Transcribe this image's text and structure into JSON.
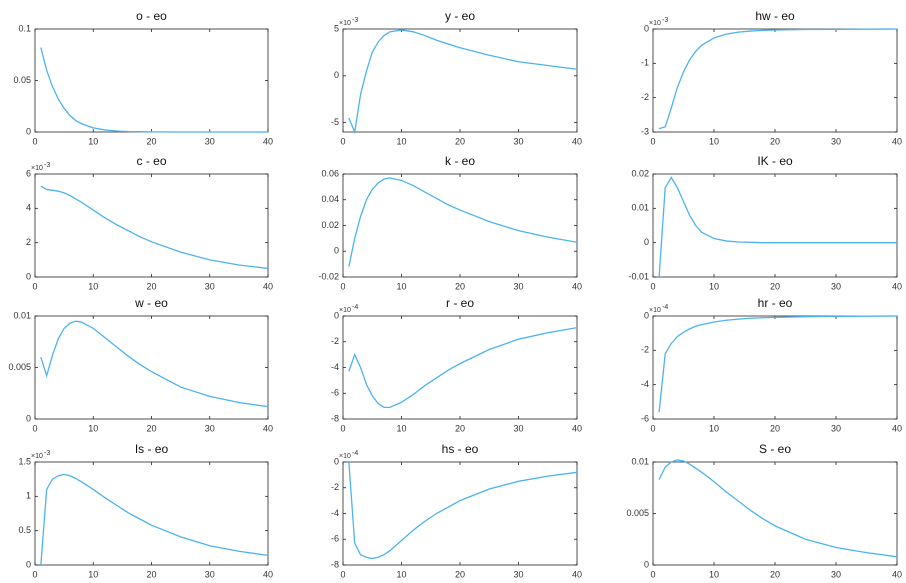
{
  "chart_data": [
    {
      "type": "line",
      "title": "o - eo",
      "color": "#4db3ef",
      "x": [
        1,
        2,
        3,
        4,
        5,
        6,
        7,
        8,
        10,
        12,
        14,
        16,
        18,
        20,
        25,
        30,
        35,
        40
      ],
      "values": [
        0.082,
        0.06,
        0.044,
        0.032,
        0.023,
        0.016,
        0.011,
        0.008,
        0.004,
        0.002,
        0.001,
        0.0005,
        0.0003,
        0.0001,
        0,
        0,
        0,
        0
      ],
      "xlim": [
        0,
        40
      ],
      "xticks": [
        0,
        10,
        20,
        30,
        40
      ],
      "ylim": [
        0,
        0.1
      ],
      "yticks": [
        0,
        0.05,
        0.1
      ]
    },
    {
      "type": "line",
      "title": "y - eo",
      "color": "#4db3ef",
      "x": [
        1,
        2,
        3,
        4,
        5,
        6,
        7,
        8,
        10,
        12,
        14,
        16,
        18,
        20,
        25,
        30,
        35,
        40
      ],
      "values": [
        -4.5,
        -6,
        -2,
        0.5,
        2.5,
        3.6,
        4.3,
        4.7,
        4.9,
        4.7,
        4.3,
        3.8,
        3.4,
        3.0,
        2.2,
        1.5,
        1.1,
        0.7
      ],
      "xlim": [
        0,
        40
      ],
      "xticks": [
        0,
        10,
        20,
        30,
        40
      ],
      "ylim": [
        -6,
        5
      ],
      "yticks": [
        -5,
        0,
        5
      ],
      "y_scale": {
        "base": "×10",
        "exponent": "-3"
      }
    },
    {
      "type": "line",
      "title": "hw - eo",
      "color": "#4db3ef",
      "x": [
        1,
        2,
        3,
        4,
        5,
        6,
        7,
        8,
        10,
        12,
        14,
        16,
        18,
        20,
        25,
        30,
        35,
        40
      ],
      "values": [
        -2.9,
        -2.85,
        -2.3,
        -1.7,
        -1.25,
        -0.9,
        -0.65,
        -0.47,
        -0.26,
        -0.15,
        -0.09,
        -0.06,
        -0.04,
        -0.03,
        -0.015,
        -0.01,
        -0.005,
        0
      ],
      "xlim": [
        0,
        40
      ],
      "xticks": [
        0,
        10,
        20,
        30,
        40
      ],
      "ylim": [
        -3,
        0
      ],
      "yticks": [
        -3,
        -2,
        -1,
        0
      ],
      "y_scale": {
        "base": "×10",
        "exponent": "-3"
      }
    },
    {
      "type": "line",
      "title": "c - eo",
      "color": "#4db3ef",
      "x": [
        1,
        2,
        3,
        4,
        5,
        6,
        7,
        8,
        10,
        12,
        14,
        16,
        18,
        20,
        25,
        30,
        35,
        40
      ],
      "values": [
        5.3,
        5.1,
        5.05,
        5.0,
        4.9,
        4.75,
        4.55,
        4.35,
        3.9,
        3.45,
        3.05,
        2.7,
        2.35,
        2.05,
        1.45,
        1.0,
        0.7,
        0.5
      ],
      "xlim": [
        0,
        40
      ],
      "xticks": [
        0,
        10,
        20,
        30,
        40
      ],
      "ylim": [
        0,
        6
      ],
      "yticks": [
        0,
        2,
        4,
        6
      ],
      "y_scale": {
        "base": "×10",
        "exponent": "-3"
      }
    },
    {
      "type": "line",
      "title": "k - eo",
      "color": "#4db3ef",
      "x": [
        1,
        2,
        3,
        4,
        5,
        6,
        7,
        8,
        10,
        12,
        14,
        16,
        18,
        20,
        25,
        30,
        35,
        40
      ],
      "values": [
        -0.012,
        0.01,
        0.027,
        0.04,
        0.048,
        0.053,
        0.056,
        0.057,
        0.055,
        0.051,
        0.046,
        0.041,
        0.036,
        0.032,
        0.023,
        0.016,
        0.011,
        0.007
      ],
      "xlim": [
        0,
        40
      ],
      "xticks": [
        0,
        10,
        20,
        30,
        40
      ],
      "ylim": [
        -0.02,
        0.06
      ],
      "yticks": [
        -0.02,
        0,
        0.02,
        0.04,
        0.06
      ]
    },
    {
      "type": "line",
      "title": "IK - eo",
      "color": "#4db3ef",
      "x": [
        1,
        2,
        3,
        4,
        5,
        6,
        7,
        8,
        10,
        12,
        14,
        16,
        18,
        20,
        25,
        30,
        35,
        40
      ],
      "values": [
        -0.01,
        0.016,
        0.019,
        0.016,
        0.012,
        0.008,
        0.005,
        0.003,
        0.0012,
        0.0005,
        0.0002,
        0.0001,
        0,
        0,
        0,
        0,
        0,
        0
      ],
      "xlim": [
        0,
        40
      ],
      "xticks": [
        0,
        10,
        20,
        30,
        40
      ],
      "ylim": [
        -0.01,
        0.02
      ],
      "yticks": [
        -0.01,
        0,
        0.01,
        0.02
      ]
    },
    {
      "type": "line",
      "title": "w - eo",
      "color": "#4db3ef",
      "x": [
        1,
        2,
        3,
        4,
        5,
        6,
        7,
        8,
        10,
        12,
        14,
        16,
        18,
        20,
        25,
        30,
        35,
        40
      ],
      "values": [
        0.006,
        0.0042,
        0.0062,
        0.0078,
        0.0088,
        0.0093,
        0.0095,
        0.0094,
        0.0088,
        0.0079,
        0.007,
        0.0061,
        0.0053,
        0.0046,
        0.0031,
        0.0022,
        0.0016,
        0.0012
      ],
      "xlim": [
        0,
        40
      ],
      "xticks": [
        0,
        10,
        20,
        30,
        40
      ],
      "ylim": [
        0,
        0.01
      ],
      "yticks": [
        0,
        0.005,
        0.01
      ]
    },
    {
      "type": "line",
      "title": "r - eo",
      "color": "#4db3ef",
      "x": [
        1,
        2,
        3,
        4,
        5,
        6,
        7,
        8,
        10,
        12,
        14,
        16,
        18,
        20,
        25,
        30,
        35,
        40
      ],
      "values": [
        -4.3,
        -3.0,
        -4.0,
        -5.3,
        -6.2,
        -6.8,
        -7.1,
        -7.1,
        -6.7,
        -6.1,
        -5.4,
        -4.8,
        -4.2,
        -3.7,
        -2.6,
        -1.8,
        -1.3,
        -0.9
      ],
      "xlim": [
        0,
        40
      ],
      "xticks": [
        0,
        10,
        20,
        30,
        40
      ],
      "ylim": [
        -8,
        0
      ],
      "yticks": [
        -8,
        -6,
        -4,
        -2,
        0
      ],
      "y_scale": {
        "base": "×10",
        "exponent": "-4"
      }
    },
    {
      "type": "line",
      "title": "hr - eo",
      "color": "#4db3ef",
      "x": [
        1,
        2,
        3,
        4,
        5,
        6,
        7,
        8,
        10,
        12,
        14,
        16,
        18,
        20,
        25,
        30,
        35,
        40
      ],
      "values": [
        -5.6,
        -2.2,
        -1.6,
        -1.2,
        -0.95,
        -0.75,
        -0.6,
        -0.5,
        -0.35,
        -0.25,
        -0.18,
        -0.13,
        -0.1,
        -0.08,
        -0.04,
        -0.02,
        -0.01,
        0
      ],
      "xlim": [
        0,
        40
      ],
      "xticks": [
        0,
        10,
        20,
        30,
        40
      ],
      "ylim": [
        -6,
        0
      ],
      "yticks": [
        -6,
        -4,
        -2,
        0
      ],
      "y_scale": {
        "base": "×10",
        "exponent": "-4"
      }
    },
    {
      "type": "line",
      "title": "Is - eo",
      "color": "#4db3ef",
      "x": [
        1,
        2,
        3,
        4,
        5,
        6,
        7,
        8,
        10,
        12,
        14,
        16,
        18,
        20,
        25,
        30,
        35,
        40
      ],
      "values": [
        0,
        1.1,
        1.25,
        1.3,
        1.32,
        1.3,
        1.26,
        1.21,
        1.1,
        0.98,
        0.87,
        0.76,
        0.67,
        0.58,
        0.41,
        0.28,
        0.2,
        0.14
      ],
      "xlim": [
        0,
        40
      ],
      "xticks": [
        0,
        10,
        20,
        30,
        40
      ],
      "ylim": [
        0,
        1.5
      ],
      "yticks": [
        0,
        0.5,
        1,
        1.5
      ],
      "y_scale": {
        "base": "×10",
        "exponent": "-3"
      }
    },
    {
      "type": "line",
      "title": "hs - eo",
      "color": "#4db3ef",
      "x": [
        1,
        2,
        3,
        4,
        5,
        6,
        7,
        8,
        10,
        12,
        14,
        16,
        18,
        20,
        25,
        30,
        35,
        40
      ],
      "values": [
        0,
        -6.3,
        -7.2,
        -7.4,
        -7.5,
        -7.4,
        -7.2,
        -6.9,
        -6.1,
        -5.3,
        -4.6,
        -4.0,
        -3.5,
        -3.0,
        -2.1,
        -1.5,
        -1.1,
        -0.8
      ],
      "xlim": [
        0,
        40
      ],
      "xticks": [
        0,
        10,
        20,
        30,
        40
      ],
      "ylim": [
        -8,
        0
      ],
      "yticks": [
        -8,
        -6,
        -4,
        -2,
        0
      ],
      "y_scale": {
        "base": "×10",
        "exponent": "-4"
      }
    },
    {
      "type": "line",
      "title": "S - eo",
      "color": "#4db3ef",
      "x": [
        1,
        2,
        3,
        4,
        5,
        6,
        7,
        8,
        10,
        12,
        14,
        16,
        18,
        20,
        25,
        30,
        35,
        40
      ],
      "values": [
        0.0083,
        0.0095,
        0.01,
        0.0102,
        0.0101,
        0.0098,
        0.0094,
        0.009,
        0.0081,
        0.0071,
        0.0062,
        0.0053,
        0.0045,
        0.0038,
        0.0025,
        0.0017,
        0.0012,
        0.0008
      ],
      "xlim": [
        0,
        40
      ],
      "xticks": [
        0,
        10,
        20,
        30,
        40
      ],
      "ylim": [
        0,
        0.01
      ],
      "yticks": [
        0,
        0.005,
        0.01
      ]
    }
  ]
}
